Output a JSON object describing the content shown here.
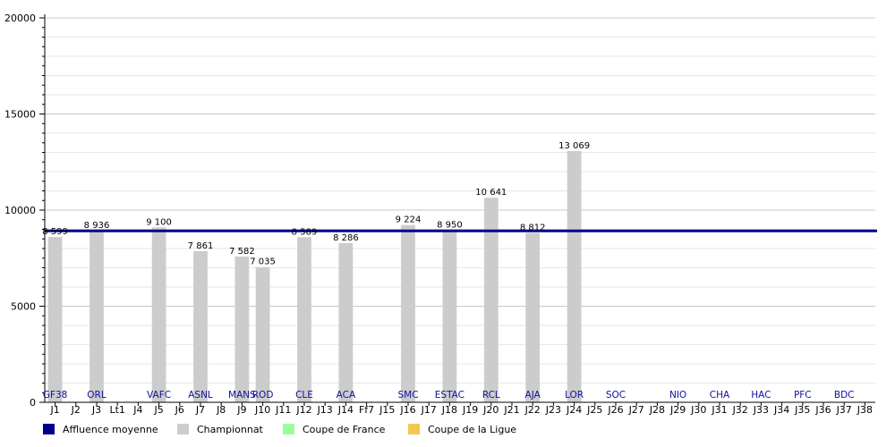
{
  "chart_data": {
    "type": "bar",
    "ylim": [
      0,
      20000
    ],
    "yticks": [
      "0",
      "5000",
      "10000",
      "15000",
      "20000"
    ],
    "categories": [
      "J1",
      "J2",
      "J3",
      "Lt1",
      "J4",
      "J5",
      "J6",
      "J7",
      "J8",
      "J9",
      "J10",
      "J11",
      "J12",
      "J13",
      "J14",
      "Ff7",
      "J15",
      "J16",
      "J17",
      "J18",
      "J19",
      "J20",
      "J21",
      "J22",
      "J23",
      "J24",
      "J25",
      "J26",
      "J27",
      "J28",
      "J29",
      "J30",
      "J31",
      "J32",
      "J33",
      "J34",
      "J35",
      "J36",
      "J37",
      "J38"
    ],
    "opponents": [
      "GF38",
      "",
      "ORL",
      "",
      "",
      "VAFC",
      "",
      "ASNL",
      "",
      "MANS",
      "ROD",
      "",
      "CLE",
      "",
      "ACA",
      "",
      "",
      "SMC",
      "",
      "ESTAC",
      "",
      "RCL",
      "",
      "AJA",
      "",
      "LOR",
      "",
      "SOC",
      "",
      "",
      "NIO",
      "",
      "CHA",
      "",
      "HAC",
      "",
      "PFC",
      "",
      "BDC",
      ""
    ],
    "series": [
      {
        "name": "Championnat",
        "color": "#cccccc",
        "values": [
          8599,
          null,
          8936,
          null,
          null,
          9100,
          null,
          7861,
          null,
          7582,
          7035,
          null,
          8589,
          null,
          8286,
          null,
          null,
          9224,
          null,
          8950,
          null,
          10641,
          null,
          8812,
          null,
          13069,
          null,
          null,
          null,
          null,
          null,
          null,
          null,
          null,
          null,
          null,
          null,
          null,
          null,
          null
        ],
        "labels": [
          "8 599",
          "",
          "8 936",
          "",
          "",
          "9 100",
          "",
          "7 861",
          "",
          "7 582",
          "7 035",
          "",
          "8 589",
          "",
          "8 286",
          "",
          "",
          "9 224",
          "",
          "8 950",
          "",
          "10 641",
          "",
          "8 812",
          "",
          "13 069",
          "",
          "",
          "",
          "",
          "",
          "",
          "",
          "",
          "",
          "",
          "",
          "",
          "",
          ""
        ]
      }
    ],
    "average": {
      "name": "Affluence moyenne",
      "value": 8918,
      "color": "#00008b"
    },
    "legend": [
      {
        "name": "Affluence moyenne",
        "color": "#00008b"
      },
      {
        "name": "Championnat",
        "color": "#cccccc"
      },
      {
        "name": "Coupe de France",
        "color": "#99ff99"
      },
      {
        "name": "Coupe de la Ligue",
        "color": "#f2c94c"
      }
    ],
    "grid": true,
    "legend_position": "bottom"
  }
}
